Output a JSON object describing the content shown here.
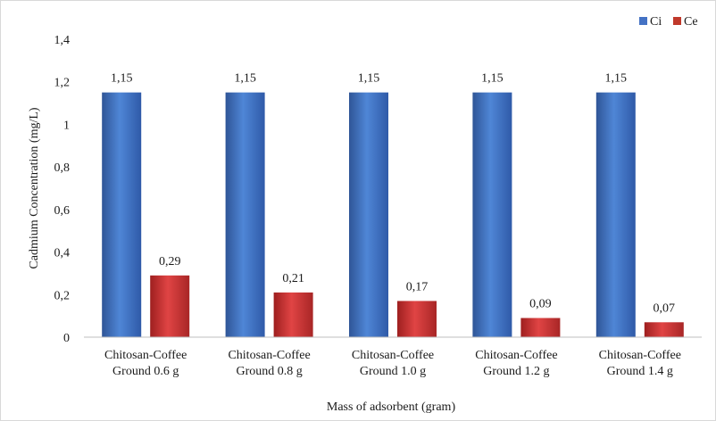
{
  "chart_data": {
    "type": "bar",
    "title": "",
    "xlabel": "Mass of adsorbent (gram)",
    "ylabel": "Cadmium  Concentration  (mg/L)",
    "ylim": [
      0,
      1.4
    ],
    "yticks": [
      "0",
      "0,2",
      "0,4",
      "0,6",
      "0,8",
      "1",
      "1,2",
      "1,4"
    ],
    "categories": [
      [
        "Chitosan-Coffee",
        "Ground 0.6 g"
      ],
      [
        "Chitosan-Coffee",
        "Ground 0.8 g"
      ],
      [
        "Chitosan-Coffee",
        "Ground 1.0 g"
      ],
      [
        "Chitosan-Coffee",
        "Ground 1.2 g"
      ],
      [
        "Chitosan-Coffee",
        "Ground 1.4 g"
      ]
    ],
    "series": [
      {
        "name": "Ci",
        "color": "#4472c4",
        "values": [
          1.15,
          1.15,
          1.15,
          1.15,
          1.15
        ],
        "labels": [
          "1,15",
          "1,15",
          "1,15",
          "1,15",
          "1,15"
        ]
      },
      {
        "name": "Ce",
        "color": "#c0392b",
        "values": [
          0.29,
          0.21,
          0.17,
          0.09,
          0.07
        ],
        "labels": [
          "0,29",
          "0,21",
          "0,17",
          "0,09",
          "0,07"
        ]
      }
    ],
    "grid": false,
    "legend_position": "top-right"
  }
}
